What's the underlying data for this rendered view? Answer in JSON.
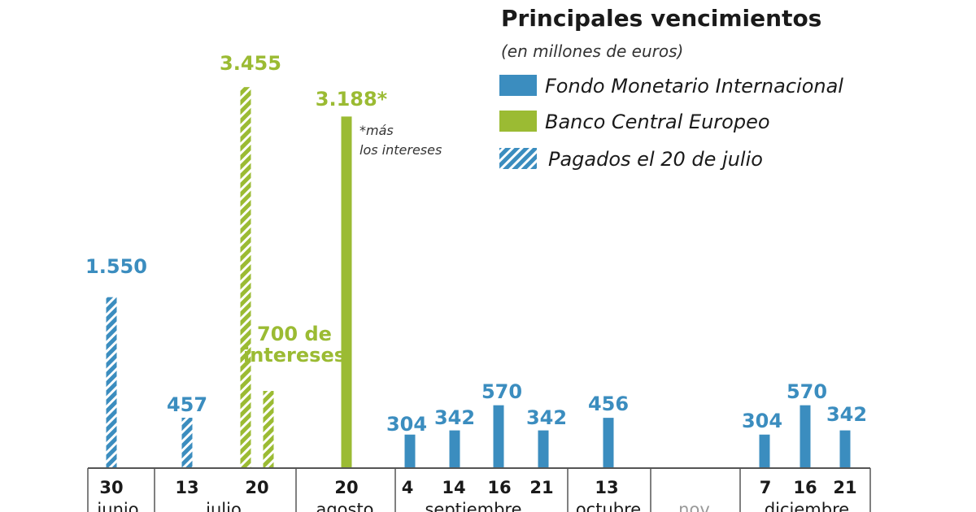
{
  "colors": {
    "imf": "#3b8dbf",
    "ecb": "#9bbb33",
    "text": "#1a1a1a",
    "axis": "#555555",
    "muted": "#999999",
    "note": "#333333"
  },
  "legend": {
    "title": "Principales vencimientos",
    "subtitle": "(en millones de euros)",
    "items": [
      {
        "label": "Fondo Monetario Internacional",
        "color": "#3b8dbf",
        "pattern": "solid"
      },
      {
        "label": "Banco Central Europeo",
        "color": "#9bbb33",
        "pattern": "solid"
      },
      {
        "label": "Pagados el 20 de julio",
        "color": "#3b8dbf",
        "pattern": "hatched"
      }
    ]
  },
  "note": {
    "line1": "*más",
    "line2": "los intereses"
  },
  "chart_data": {
    "type": "bar",
    "unit": "millones de euros",
    "series_names": [
      "Fondo Monetario Internacional",
      "Banco Central Europeo"
    ],
    "bars": [
      {
        "date": "30 junio",
        "series": "Fondo Monetario Internacional",
        "value": 1550,
        "label": "1.550",
        "paid": true
      },
      {
        "date": "13 julio",
        "series": "Fondo Monetario Internacional",
        "value": 457,
        "label": "457",
        "paid": true
      },
      {
        "date": "20 julio",
        "series": "Banco Central Europeo",
        "value": 3455,
        "label": "3.455",
        "paid": true
      },
      {
        "date": "20 julio",
        "series": "Banco Central Europeo",
        "value": 700,
        "label": "700 de\nintereses",
        "paid": true
      },
      {
        "date": "20 agosto",
        "series": "Banco Central Europeo",
        "value": 3188,
        "label": "3.188*",
        "paid": false
      },
      {
        "date": "4 septiembre",
        "series": "Fondo Monetario Internacional",
        "value": 304,
        "label": "304",
        "paid": false
      },
      {
        "date": "14 septiembre",
        "series": "Fondo Monetario Internacional",
        "value": 342,
        "label": "342",
        "paid": false
      },
      {
        "date": "16 septiembre",
        "series": "Fondo Monetario Internacional",
        "value": 570,
        "label": "570",
        "paid": false
      },
      {
        "date": "21 septiembre",
        "series": "Fondo Monetario Internacional",
        "value": 342,
        "label": "342",
        "paid": false
      },
      {
        "date": "13 octubre",
        "series": "Fondo Monetario Internacional",
        "value": 456,
        "label": "456",
        "paid": false
      },
      {
        "date": "7 diciembre",
        "series": "Fondo Monetario Internacional",
        "value": 304,
        "label": "304",
        "paid": false
      },
      {
        "date": "16 diciembre",
        "series": "Fondo Monetario Internacional",
        "value": 570,
        "label": "570",
        "paid": false
      },
      {
        "date": "21 diciembre",
        "series": "Fondo Monetario Internacional",
        "value": 342,
        "label": "342",
        "paid": false
      }
    ],
    "day_ticks": [
      "30",
      "13",
      "20",
      "20",
      "4",
      "14",
      "16",
      "21",
      "13",
      "7",
      "16",
      "21"
    ],
    "months": [
      "junio",
      "julio",
      "agosto",
      "septiembre",
      "octubre",
      "nov.",
      "diciembre"
    ]
  }
}
